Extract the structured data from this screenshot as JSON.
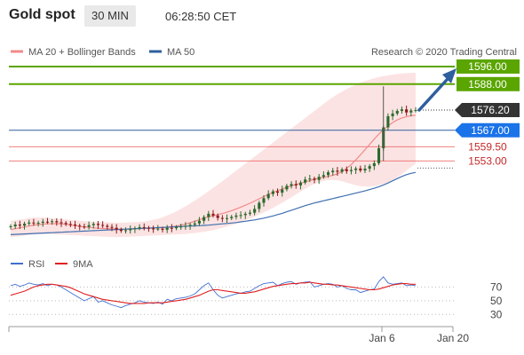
{
  "header": {
    "title": "Gold spot",
    "timeframe": "30 MIN",
    "time": "06:28:50 CET"
  },
  "legend": {
    "ma20_label": "MA 20 + Bollinger Bands",
    "ma50_label": "MA 50",
    "credit": "Research © 2020 Trading Central",
    "rsi_label": "RSI",
    "rsi_ma_label": "9MA"
  },
  "colors": {
    "green": "#5aa500",
    "blue_line": "#2e5f9e",
    "red_line": "#e84b4b",
    "last_price_bg": "#333333",
    "candle_up": "#2c6a2c",
    "candle_down": "#8b1a1a",
    "band_fill": "#fbd9d9",
    "ma50": "#3f6fb0",
    "rsi": "#3f6fd0",
    "rsi_ma": "#e02020",
    "arrow": "#2e5f9e"
  },
  "chart_data": {
    "type": "candlestick",
    "title": "Gold spot",
    "timeframe": "30 MIN",
    "y_scale": {
      "min": 1514,
      "max": 1598
    },
    "x_ticks": [
      "Jan 6",
      "Jan 20"
    ],
    "price_levels": [
      {
        "label": "1596.00",
        "value": 1596.0,
        "style": "green"
      },
      {
        "label": "1588.00",
        "value": 1588.0,
        "style": "green"
      },
      {
        "label": "1576.20",
        "value": 1576.2,
        "style": "last"
      },
      {
        "label": "1567.00",
        "value": 1567.0,
        "style": "blue"
      },
      {
        "label": "1559.50",
        "value": 1559.5,
        "style": "red"
      },
      {
        "label": "1553.00",
        "value": 1553.0,
        "style": "red"
      }
    ],
    "close_series": [
      1523.3,
      1524.1,
      1523.6,
      1524.5,
      1525.0,
      1524.7,
      1524.9,
      1525.4,
      1525.2,
      1525.6,
      1525.1,
      1524.8,
      1524.3,
      1524.1,
      1523.6,
      1523.2,
      1523.0,
      1523.8,
      1524.4,
      1523.9,
      1523.5,
      1523.0,
      1522.6,
      1521.8,
      1521.2,
      1521.5,
      1522.0,
      1522.4,
      1522.9,
      1522.6,
      1522.3,
      1522.1,
      1522.2,
      1521.7,
      1522.6,
      1522.4,
      1522.9,
      1523.2,
      1523.5,
      1524.0,
      1524.6,
      1525.8,
      1527.5,
      1529.0,
      1528.2,
      1527.1,
      1526.7,
      1527.0,
      1527.6,
      1528.2,
      1528.4,
      1529.0,
      1529.5,
      1531.2,
      1534.0,
      1536.1,
      1538.0,
      1539.2,
      1538.6,
      1540.1,
      1541.7,
      1542.5,
      1541.9,
      1543.2,
      1544.6,
      1545.0,
      1544.4,
      1545.8,
      1546.6,
      1547.9,
      1548.6,
      1548.1,
      1549.2,
      1548.4,
      1548.9,
      1549.6,
      1548.7,
      1549.5,
      1550.7,
      1552.0,
      1558.8,
      1568.3,
      1573.4,
      1574.6,
      1575.8,
      1576.5,
      1575.1,
      1576.0,
      1576.2
    ],
    "ma20_series": [
      1521.8,
      1522.2,
      1522.6,
      1523.0,
      1523.4,
      1523.8,
      1524.1,
      1524.3,
      1524.4,
      1524.5,
      1524.5,
      1524.4,
      1524.2,
      1523.9,
      1523.6,
      1523.3,
      1523.0,
      1522.8,
      1522.6,
      1522.4,
      1522.3,
      1522.2,
      1522.1,
      1522.0,
      1521.9,
      1521.9,
      1522.0,
      1522.1,
      1522.2,
      1522.3,
      1522.4,
      1522.5,
      1522.6,
      1522.7,
      1522.9,
      1523.1,
      1523.4,
      1523.8,
      1524.3,
      1524.9,
      1525.6,
      1526.3,
      1527.0,
      1527.6,
      1528.1,
      1528.6,
      1529.1,
      1529.7,
      1530.4,
      1531.2,
      1532.0,
      1532.9,
      1533.8,
      1534.8,
      1535.8,
      1536.8,
      1537.8,
      1538.7,
      1539.5,
      1540.3,
      1541.0,
      1541.7,
      1542.3,
      1542.9,
      1543.5,
      1544.1,
      1544.7,
      1545.2,
      1545.6,
      1546.0,
      1546.5,
      1547.2,
      1548.2,
      1549.6,
      1551.4,
      1553.5,
      1555.8,
      1558.2,
      1560.6,
      1563.0,
      1565.2,
      1567.2,
      1569.0,
      1570.5,
      1571.7,
      1572.6,
      1573.2,
      1573.6,
      1573.8
    ],
    "bb_upper": [
      1525.8,
      1526.1,
      1526.4,
      1526.7,
      1527.0,
      1527.2,
      1527.3,
      1527.3,
      1527.2,
      1527.0,
      1526.8,
      1526.6,
      1526.4,
      1526.2,
      1526.0,
      1525.8,
      1525.6,
      1525.5,
      1525.4,
      1525.3,
      1525.2,
      1525.1,
      1525.0,
      1524.9,
      1524.9,
      1525.0,
      1525.1,
      1525.2,
      1525.3,
      1525.5,
      1525.8,
      1526.2,
      1526.7,
      1527.4,
      1528.2,
      1529.1,
      1530.1,
      1531.2,
      1532.4,
      1533.7,
      1535.0,
      1536.4,
      1537.8,
      1539.3,
      1540.8,
      1542.3,
      1543.8,
      1545.4,
      1547.0,
      1548.6,
      1550.2,
      1551.8,
      1553.4,
      1555.0,
      1556.6,
      1558.2,
      1559.8,
      1561.4,
      1563.0,
      1564.6,
      1566.2,
      1567.8,
      1569.4,
      1571.0,
      1572.6,
      1574.2,
      1575.8,
      1577.4,
      1579.0,
      1580.6,
      1582.0,
      1583.4,
      1584.6,
      1585.8,
      1586.8,
      1587.8,
      1588.6,
      1589.4,
      1590.0,
      1590.6,
      1591.2,
      1591.6,
      1592.0,
      1592.3,
      1592.6,
      1592.8,
      1593.0,
      1593.1,
      1593.2
    ],
    "bb_lower": [
      1518.2,
      1518.5,
      1518.8,
      1519.1,
      1519.4,
      1519.6,
      1519.7,
      1519.8,
      1519.8,
      1519.7,
      1519.6,
      1519.5,
      1519.4,
      1519.3,
      1519.2,
      1519.1,
      1519.0,
      1518.9,
      1518.8,
      1518.7,
      1518.6,
      1518.5,
      1518.4,
      1518.4,
      1518.4,
      1518.5,
      1518.6,
      1518.7,
      1518.8,
      1518.9,
      1519.0,
      1519.1,
      1519.2,
      1519.3,
      1519.4,
      1519.5,
      1519.6,
      1519.7,
      1519.8,
      1520.0,
      1520.2,
      1520.5,
      1520.8,
      1521.2,
      1521.6,
      1522.1,
      1522.6,
      1523.2,
      1523.8,
      1524.5,
      1525.2,
      1526.0,
      1526.8,
      1527.7,
      1528.6,
      1529.6,
      1530.6,
      1531.7,
      1532.8,
      1534.0,
      1535.2,
      1536.5,
      1537.8,
      1539.1,
      1540.4,
      1541.6,
      1542.6,
      1543.4,
      1544.0,
      1544.3,
      1544.4,
      1544.2,
      1543.8,
      1543.2,
      1542.6,
      1542.0,
      1541.6,
      1541.4,
      1541.4,
      1541.6,
      1542.0,
      1542.6,
      1543.4,
      1544.4,
      1545.6,
      1547.0,
      1548.6,
      1550.2,
      1551.8
    ],
    "ma50_series": [
      1519.5,
      1519.6,
      1519.7,
      1519.8,
      1519.9,
      1520.0,
      1520.1,
      1520.2,
      1520.3,
      1520.4,
      1520.5,
      1520.6,
      1520.7,
      1520.8,
      1520.9,
      1521.0,
      1521.1,
      1521.2,
      1521.3,
      1521.4,
      1521.5,
      1521.6,
      1521.7,
      1521.8,
      1521.9,
      1522.0,
      1522.1,
      1522.2,
      1522.3,
      1522.4,
      1522.5,
      1522.6,
      1522.7,
      1522.8,
      1522.9,
      1523.0,
      1523.1,
      1523.2,
      1523.3,
      1523.4,
      1523.5,
      1523.6,
      1523.7,
      1523.8,
      1524.0,
      1524.2,
      1524.4,
      1524.6,
      1524.8,
      1525.0,
      1525.3,
      1525.6,
      1525.9,
      1526.2,
      1526.6,
      1527.0,
      1527.5,
      1528.0,
      1528.6,
      1529.2,
      1529.9,
      1530.6,
      1531.3,
      1532.0,
      1532.7,
      1533.3,
      1533.9,
      1534.4,
      1534.9,
      1535.4,
      1535.9,
      1536.4,
      1536.9,
      1537.4,
      1537.9,
      1538.4,
      1538.9,
      1539.4,
      1540.0,
      1540.6,
      1541.3,
      1542.1,
      1543.0,
      1544.0,
      1545.0,
      1546.0,
      1546.8,
      1547.4,
      1547.8
    ],
    "rsi_panel": {
      "ticks": [
        30,
        50,
        70
      ],
      "rsi_series": [
        72,
        74,
        71,
        73,
        76,
        74,
        73,
        75,
        72,
        74,
        73,
        70,
        66,
        62,
        58,
        54,
        50,
        53,
        56,
        48,
        50,
        47,
        44,
        42,
        40,
        43,
        45,
        47,
        50,
        48,
        47,
        46,
        48,
        45,
        52,
        50,
        53,
        54,
        55,
        57,
        60,
        66,
        72,
        76,
        66,
        58,
        54,
        56,
        58,
        60,
        61,
        63,
        64,
        68,
        72,
        75,
        76,
        77,
        72,
        75,
        77,
        78,
        74,
        76,
        77,
        78,
        70,
        72,
        74,
        75,
        74,
        70,
        72,
        68,
        66,
        66,
        62,
        64,
        66,
        67,
        78,
        85,
        76,
        74,
        75,
        76,
        72,
        73,
        72
      ],
      "ma9_series": [
        58,
        60,
        62,
        64,
        67,
        70,
        72,
        73,
        74,
        74,
        73,
        72,
        71,
        69,
        66,
        63,
        60,
        58,
        56,
        54,
        52,
        51,
        50,
        49,
        48,
        47,
        46,
        46,
        46,
        46,
        47,
        47,
        47,
        47,
        48,
        49,
        50,
        51,
        52,
        54,
        56,
        58,
        61,
        64,
        66,
        66,
        65,
        64,
        63,
        62,
        61,
        61,
        62,
        63,
        65,
        67,
        69,
        71,
        72,
        73,
        74,
        75,
        75,
        76,
        76,
        77,
        76,
        75,
        74,
        74,
        73,
        73,
        72,
        71,
        70,
        69,
        68,
        67,
        66,
        66,
        67,
        69,
        71,
        73,
        74,
        75,
        75,
        74,
        74
      ]
    }
  }
}
